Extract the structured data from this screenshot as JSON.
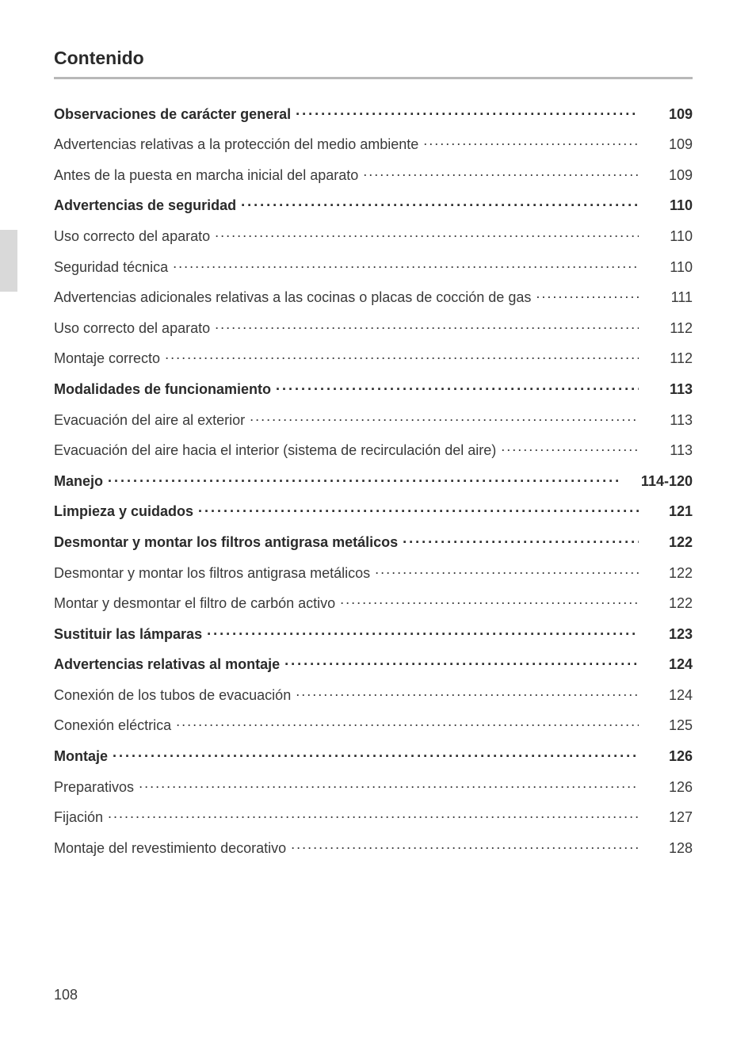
{
  "title": "Contenido",
  "page_number": "108",
  "colors": {
    "text": "#3a3a3a",
    "text_bold": "#2a2a2a",
    "underline": "#b8b8b8",
    "tab": "#d9d9d9",
    "background": "#ffffff"
  },
  "typography": {
    "title_fontsize": 23,
    "row_fontsize": 18,
    "pagenum_fontsize": 18,
    "bold_weight": 700,
    "normal_weight": 300
  },
  "entries": [
    {
      "label": "Observaciones de carácter general",
      "page": "109",
      "bold": true
    },
    {
      "label": "Advertencias relativas a la protección del medio ambiente",
      "page": "109",
      "bold": false
    },
    {
      "label": "Antes de la puesta en marcha inicial del aparato",
      "page": "109",
      "bold": false
    },
    {
      "label": "Advertencias de seguridad",
      "page": "110",
      "bold": true
    },
    {
      "label": "Uso correcto del aparato",
      "page": "110",
      "bold": false
    },
    {
      "label": "Seguridad técnica",
      "page": "110",
      "bold": false
    },
    {
      "label": "Advertencias adicionales relativas a las cocinas o placas de cocción de gas",
      "page": "111",
      "bold": false
    },
    {
      "label": "Uso correcto del aparato",
      "page": "112",
      "bold": false
    },
    {
      "label": "Montaje correcto",
      "page": "112",
      "bold": false
    },
    {
      "label": "Modalidades de funcionamiento",
      "page": "113",
      "bold": true
    },
    {
      "label": "Evacuación del aire al exterior",
      "page": "113",
      "bold": false
    },
    {
      "label": "Evacuación del aire hacia el interior (sistema de recirculación del aire)",
      "page": "113",
      "bold": false
    },
    {
      "label": "Manejo",
      "page": "114-120",
      "bold": true
    },
    {
      "label": "Limpieza y cuidados",
      "page": "121",
      "bold": true
    },
    {
      "label": "Desmontar y montar los filtros antigrasa metálicos",
      "page": "122",
      "bold": true
    },
    {
      "label": "Desmontar y montar los filtros antigrasa metálicos",
      "page": "122",
      "bold": false
    },
    {
      "label": "Montar y desmontar el filtro de carbón activo",
      "page": "122",
      "bold": false
    },
    {
      "label": "Sustituir las lámparas",
      "page": "123",
      "bold": true
    },
    {
      "label": "Advertencias relativas al montaje",
      "page": "124",
      "bold": true
    },
    {
      "label": "Conexión de los tubos de evacuación",
      "page": "124",
      "bold": false
    },
    {
      "label": "Conexión eléctrica",
      "page": "125",
      "bold": false
    },
    {
      "label": "Montaje",
      "page": "126",
      "bold": true
    },
    {
      "label": "Preparativos",
      "page": "126",
      "bold": false
    },
    {
      "label": "Fijación",
      "page": "127",
      "bold": false
    },
    {
      "label": "Montaje del revestimiento decorativo",
      "page": "128",
      "bold": false
    }
  ]
}
